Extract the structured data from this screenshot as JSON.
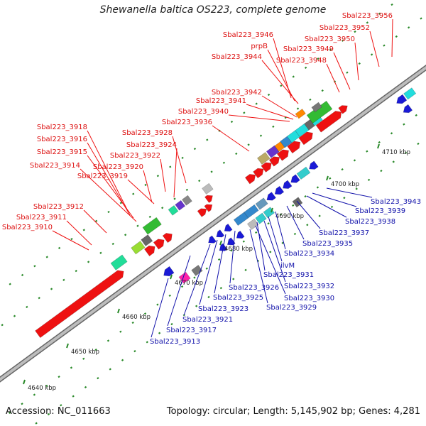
{
  "header": {
    "title": "Shewanella baltica OS223, complete genome"
  },
  "footer": {
    "accession": "Accession: NC_011663",
    "topology": "Topology: circular; Length: 5,145,902 bp; Genes: 4,281"
  },
  "colors": {
    "forward_label": "#dd1111",
    "reverse_label": "#1111aa",
    "forward_gene": "#ee1111",
    "reverse_gene": "#1a1ad6",
    "backbone": "#888888"
  },
  "scale_ticks": [
    "4640 kbp",
    "4650 kbp",
    "4660 kbp",
    "4670 kbp",
    "4680 kbp",
    "4690 kbp",
    "4700 kbp",
    "4710 kbp"
  ],
  "forward_labels": [
    "Sbal223_3956",
    "Sbal223_3952",
    "Sbal223_3950",
    "Sbal223_3946",
    "prpB",
    "Sbal223_3949",
    "Sbal223_3944",
    "Sbal223_3948",
    "Sbal223_3942",
    "Sbal223_3941",
    "Sbal223_3940",
    "Sbal223_3936",
    "Sbal223_3928",
    "Sbal223_3924",
    "Sbal223_3922",
    "Sbal223_3920",
    "Sbal223_3919",
    "Sbal223_3918",
    "Sbal223_3916",
    "Sbal223_3915",
    "Sbal223_3914",
    "Sbal223_3912",
    "Sbal223_3911",
    "Sbal223_3910"
  ],
  "reverse_labels": [
    "Sbal223_3943",
    "Sbal223_3939",
    "Sbal223_3938",
    "Sbal223_3937",
    "Sbal223_3935",
    "Sbal223_3934",
    "ilvM",
    "Sbal223_3931",
    "Sbal223_3932",
    "Sbal223_3926",
    "Sbal223_3930",
    "Sbal223_3925",
    "Sbal223_3929",
    "Sbal223_3923",
    "Sbal223_3921",
    "Sbal223_3917",
    "Sbal223_3913"
  ]
}
